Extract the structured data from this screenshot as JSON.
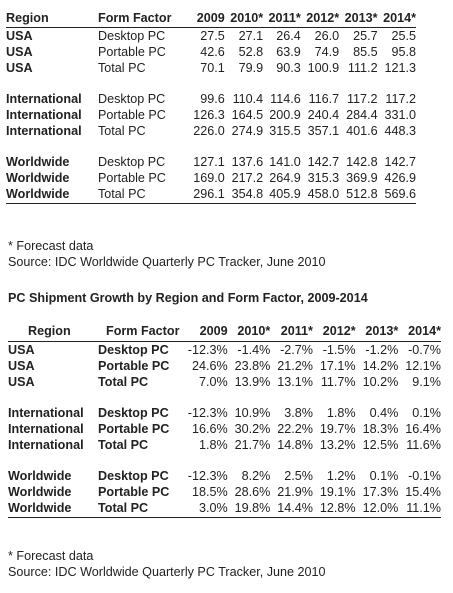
{
  "table1": {
    "headers": [
      "Region",
      "Form Factor",
      "2009",
      "2010*",
      "2011*",
      "2012*",
      "2013*",
      "2014*"
    ],
    "rows": [
      [
        "USA",
        "Desktop PC",
        "27.5",
        "27.1",
        "26.4",
        "26.0",
        "25.7",
        "25.5"
      ],
      [
        "USA",
        "Portable PC",
        "42.6",
        "52.8",
        "63.9",
        "74.9",
        "85.5",
        "95.8"
      ],
      [
        "USA",
        "Total PC",
        "70.1",
        "79.9",
        "90.3",
        "100.9",
        "111.2",
        "121.3"
      ],
      [
        "International",
        "Desktop PC",
        "99.6",
        "110.4",
        "114.6",
        "116.7",
        "117.2",
        "117.2"
      ],
      [
        "International",
        "Portable PC",
        "126.3",
        "164.5",
        "200.9",
        "240.4",
        "284.4",
        "331.0"
      ],
      [
        "International",
        "Total PC",
        "226.0",
        "274.9",
        "315.5",
        "357.1",
        "401.6",
        "448.3"
      ],
      [
        "Worldwide",
        "Desktop PC",
        "127.1",
        "137.6",
        "141.0",
        "142.7",
        "142.8",
        "142.7"
      ],
      [
        "Worldwide",
        "Portable PC",
        "169.0",
        "217.2",
        "264.9",
        "315.3",
        "369.9",
        "426.9"
      ],
      [
        "Worldwide",
        "Total PC",
        "296.1",
        "354.8",
        "405.9",
        "458.0",
        "512.8",
        "569.6"
      ]
    ],
    "note_forecast": "* Forecast data",
    "note_source": "Source: IDC Worldwide Quarterly PC Tracker, June 2010"
  },
  "table2": {
    "title": "PC Shipment Growth by Region and Form Factor, 2009-2014",
    "headers": [
      "Region",
      "Form Factor",
      "2009",
      "2010*",
      "2011*",
      "2012*",
      "2013*",
      "2014*"
    ],
    "rows": [
      [
        "USA",
        "Desktop PC",
        "-12.3%",
        "-1.4%",
        "-2.7%",
        "-1.5%",
        "-1.2%",
        "-0.7%"
      ],
      [
        "USA",
        "Portable PC",
        "24.6%",
        "23.8%",
        "21.2%",
        "17.1%",
        "14.2%",
        "12.1%"
      ],
      [
        "USA",
        "Total PC",
        "7.0%",
        "13.9%",
        "13.1%",
        "11.7%",
        "10.2%",
        "9.1%"
      ],
      [
        "International",
        "Desktop PC",
        "-12.3%",
        "10.9%",
        "3.8%",
        "1.8%",
        "0.4%",
        "0.1%"
      ],
      [
        "International",
        "Portable PC",
        "16.6%",
        "30.2%",
        "22.2%",
        "19.7%",
        "18.3%",
        "16.4%"
      ],
      [
        "International",
        "Total PC",
        "1.8%",
        "21.7%",
        "14.8%",
        "13.2%",
        "12.5%",
        "11.6%"
      ],
      [
        "Worldwide",
        "Desktop PC",
        "-12.3%",
        "8.2%",
        "2.5%",
        "1.2%",
        "0.1%",
        "-0.1%"
      ],
      [
        "Worldwide",
        "Portable PC",
        "18.5%",
        "28.6%",
        "21.9%",
        "19.1%",
        "17.3%",
        "15.4%"
      ],
      [
        "Worldwide",
        "Total PC",
        "3.0%",
        "19.8%",
        "14.4%",
        "12.8%",
        "12.0%",
        "11.1%"
      ]
    ],
    "note_forecast": "* Forecast data",
    "note_source": "Source: IDC Worldwide Quarterly PC Tracker, June 2010"
  }
}
